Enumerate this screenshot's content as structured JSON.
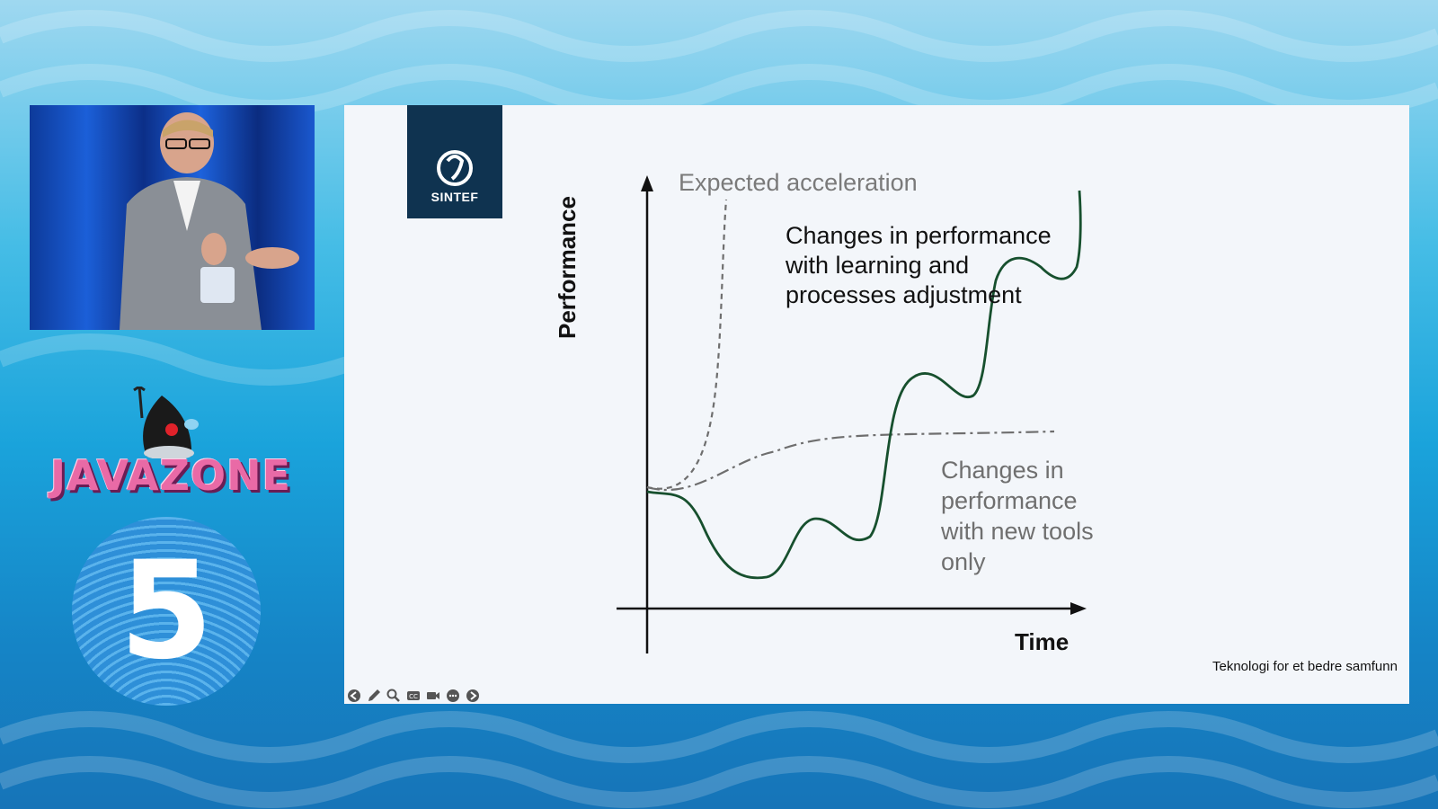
{
  "event": {
    "name": "JAVAZONE",
    "edition_number": "5"
  },
  "slide": {
    "brand": "SINTEF",
    "footer": "Teknologi for et bedre samfunn",
    "toolbar_icons": [
      "arrow-left-icon",
      "pen-icon",
      "zoom-icon",
      "captions-icon",
      "camera-icon",
      "more-icon",
      "arrow-right-icon"
    ]
  },
  "chart_data": {
    "type": "line",
    "xlabel": "Time",
    "ylabel": "Performance",
    "annotations": {
      "expected": "Expected acceleration",
      "learning": "Changes in performance with learning and processes adjustment",
      "tools": "Changes in performance with new tools only"
    },
    "series": [
      {
        "line_style": "dashed",
        "color": "#6e6e6e"
      },
      {
        "line_style": "dash-dot",
        "color": "#6e6e6e"
      },
      {
        "line_style": "solid",
        "color": "#17502e"
      }
    ]
  },
  "colors": {
    "brand_navy": "#0f3350",
    "learning_curve": "#17502e",
    "javazone_pink": "#e96aa6"
  }
}
